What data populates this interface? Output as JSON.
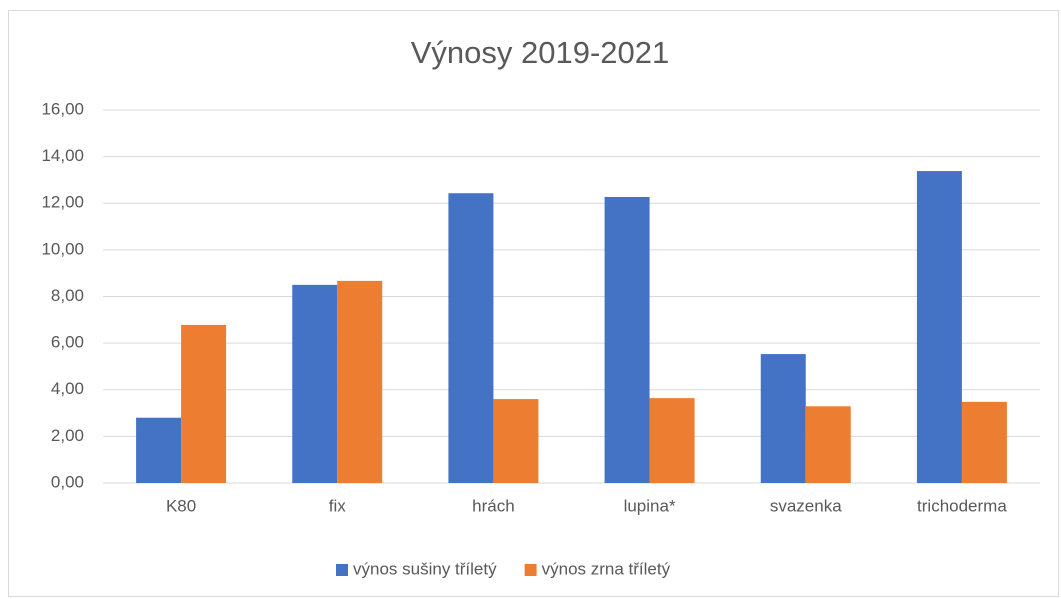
{
  "chart_data": {
    "type": "bar",
    "title": "Výnosy 2019-2021",
    "categories": [
      "K80",
      "fix",
      "hrách",
      "lupina*",
      "svazenka",
      "trichoderma"
    ],
    "series": [
      {
        "name": "výnos sušiny tříletý",
        "color": "#4472c4",
        "values": [
          2.8,
          8.5,
          12.43,
          12.27,
          5.53,
          13.38
        ]
      },
      {
        "name": "výnos zrna tříletý",
        "color": "#ed7d31",
        "values": [
          6.78,
          8.67,
          3.6,
          3.64,
          3.29,
          3.48
        ]
      }
    ],
    "ylim": [
      0,
      16
    ],
    "yticks": [
      {
        "value": 0,
        "label": "0,00"
      },
      {
        "value": 2,
        "label": "2,00"
      },
      {
        "value": 4,
        "label": "4,00"
      },
      {
        "value": 6,
        "label": "6,00"
      },
      {
        "value": 8,
        "label": "8,00"
      },
      {
        "value": 10,
        "label": "10,00"
      },
      {
        "value": 12,
        "label": "12,00"
      },
      {
        "value": 14,
        "label": "14,00"
      },
      {
        "value": 16,
        "label": "16,00"
      }
    ],
    "grid": true,
    "legend": "bottom"
  }
}
